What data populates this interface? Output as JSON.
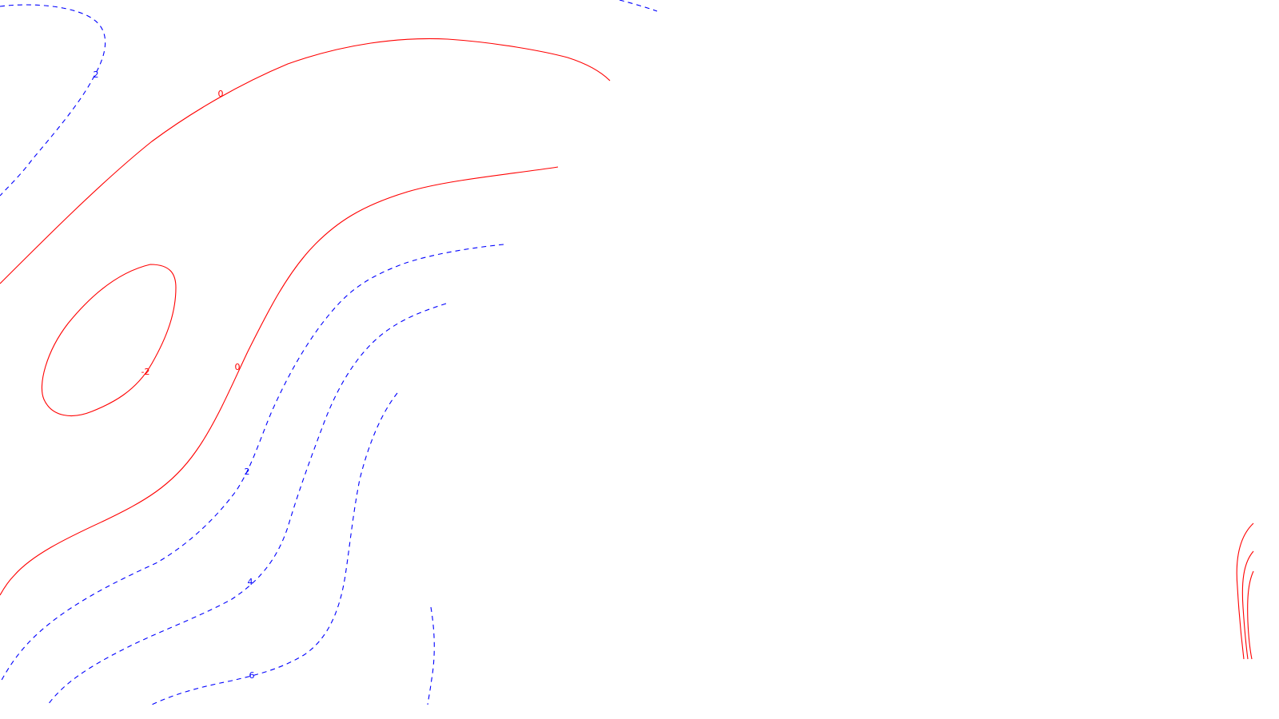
{
  "chart_data": {
    "type": "contour",
    "levels": [
      -2,
      0,
      2,
      4,
      6
    ],
    "colors": {
      "negative_or_zero": "#ff0000",
      "positive": "#0000ff"
    },
    "line_styles": {
      "negative_or_zero": "solid",
      "positive": "dashed"
    },
    "labels": [
      {
        "text": "0",
        "level": 0
      },
      {
        "text": "0",
        "level": 0
      },
      {
        "text": "-2",
        "level": -2
      },
      {
        "text": "2",
        "level": 2
      },
      {
        "text": "2",
        "level": 2
      },
      {
        "text": "4",
        "level": 4
      },
      {
        "text": "6",
        "level": 6
      }
    ],
    "grid": false,
    "legend": "none"
  }
}
